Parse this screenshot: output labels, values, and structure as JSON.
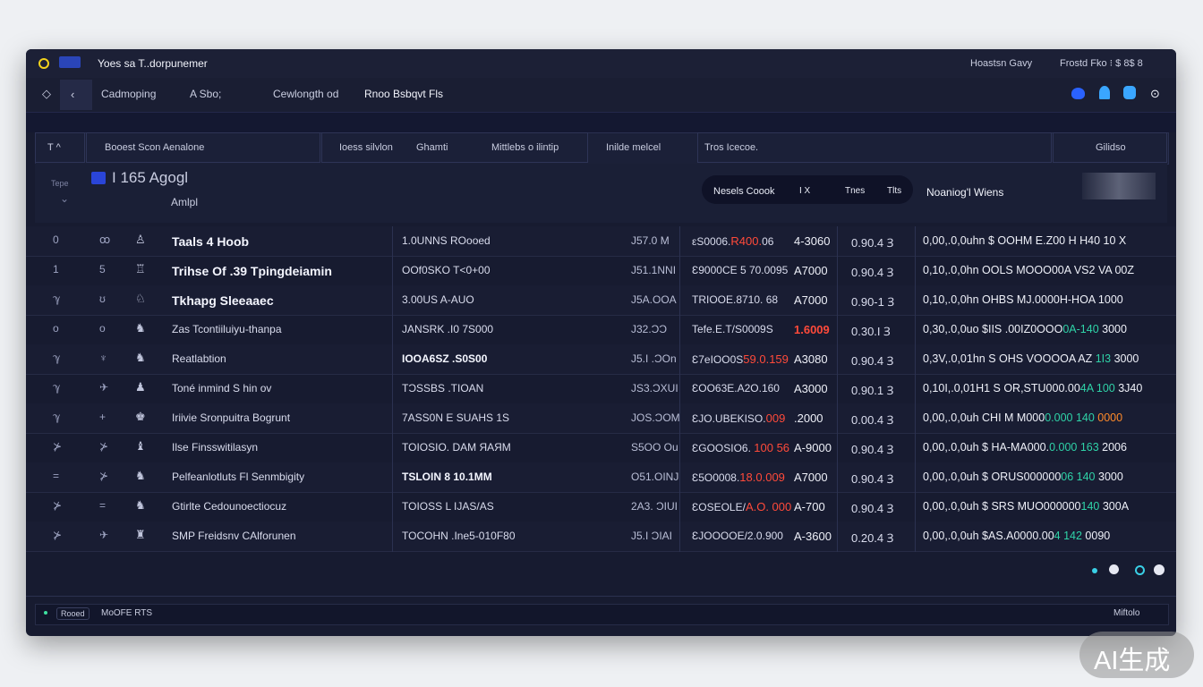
{
  "title_bar": {
    "title": "Yoes sa T..dorpunemer",
    "right_1": "Hoastsn Gavy",
    "right_2": "Frostd Fko ⁝ $ 8$ 8"
  },
  "toolbar": {
    "items": [
      "Cadmoping",
      "A Sbo;",
      "Cewlongth od",
      "Rnoo  Bsbqvt Fls"
    ]
  },
  "tabs": [
    "T ^",
    "Booest Scon Aenalone",
    "Ioess silvlon",
    "Ghamti",
    "Mittlebs o ilintip",
    "Inilde melcel",
    "Tros Icecoe.",
    "Gilidso"
  ],
  "subheader": {
    "title": "I 165 Agogl",
    "subtitle": "Amlpl",
    "left_label": "Tepe",
    "pill": [
      "Nesels Coook",
      "I X",
      "Tnes",
      "Tlts"
    ],
    "right_label": "Noaniog'l Wiens"
  },
  "rows": [
    {
      "icon": "0",
      "num": "ꝏ",
      "glyph": "♙",
      "name": "Taals 4 Hoob",
      "code": "1.0UNNS ROooed",
      "size": "J57.0 M",
      "price": "εS0006.",
      "price_hl": "R400.",
      "price_tail": "06",
      "price_hl_color": "#ff4a3a",
      "qty": "4-3060",
      "pct": "0.90.4 Ɜ",
      "total": "0,00,.0,0uhn $ OOHM E.Z00 H H40 10 X"
    },
    {
      "icon": "1",
      "num": "5",
      "glyph": "♖",
      "name": "Trihse Of .39 Tpingdeiamin",
      "code": "OOf0SKO T<0+00",
      "size": "J51.1NNI",
      "price": "Ɛ9000CE 5 70.00",
      "price_tail": "95",
      "qty": "A7000",
      "pct": "0.90.4 Ɜ",
      "total": "0,10,.0,0hn OOLS MOOO00A VS2 VA 00Z"
    },
    {
      "icon": "ℽ",
      "num": "ʊ",
      "glyph": "♘",
      "name": "Tkhapg Sleeaaec",
      "code": "3.00US A-AUO",
      "size": "J5A.OOA",
      "price": "TRIOOE.8710. 6",
      "price_tail": "8",
      "qty": "A7000",
      "pct": "0.90-1 Ɜ",
      "total": "0,10,.0,0hn OHBS MJ.0000H-HOA 1000"
    },
    {
      "icon": "o",
      "num": "o",
      "glyph": "♞",
      "name": "Zas Tcontiiluiyu-thanpa",
      "code": "JANSRK .I0 7S000",
      "size": "J32.ƆƆ",
      "price": "Tefe.E.T/S0009S",
      "qty": "1.6009",
      "qty_color": "#ff4a3a",
      "pct": "0.30.I Ɜ",
      "total": "0,30,.0,0uo $IIS .00IZ0OOO",
      "total_hl": "0A-140 ",
      "total_hl_color": "#2fd3a8",
      "total_tail": "3000"
    },
    {
      "icon": "ℽ",
      "num": "♆",
      "glyph": "♞",
      "name": "Reatlabtion",
      "code": "IOOA6SZ .S0S00",
      "size": "J5.I .ƆOn",
      "price": "Ɛ7eIOO0S",
      "price_hl": "59.0.159",
      "price_hl_color": "#ff4a3a",
      "qty": "A3080",
      "pct": "0.90.4 Ɜ",
      "total": "0,3V,.0,01hn S OHS VOOOOA AZ",
      "total_hl": " 1I3 ",
      "total_hl_color": "#2fd3a8",
      "total_tail": "3000"
    },
    {
      "icon": "ℽ",
      "num": "✈",
      "glyph": "♟",
      "name": "Toné inmind S hin ov",
      "code": "TƆSSBS .TIOAN",
      "size": "JS3.ƆXUI",
      "price": "ƐOO63E.",
      "price_tail": "A2O.160",
      "qty": "A3000",
      "pct": "0.90.1 Ɜ",
      "total": "0,10I,.0,01H1 S OR,STU000.00",
      "total_hl": "4A 100 ",
      "total_hl_color": "#2fd3a8",
      "total_tail": "3J40"
    },
    {
      "icon": "ℽ",
      "num": "+",
      "glyph": "♚",
      "name": "Iriivie Sronpuitra Bogrunt",
      "code": "7ASS0N E SUAHS 1S",
      "size": "JOS.ƆOM",
      "price": "ƐJO.UBEKISO.",
      "price_hl": "009",
      "price_hl_color": "#ff4a3a",
      "qty": ".2000",
      "pct": "0.00.4 Ɜ",
      "total": "0,00,.0,0uh CHI  M M000",
      "total_hl": "0.000 140 ",
      "total_hl_color": "#2fd3a8",
      "total_tail": "0000",
      "total_tail_color": "#ff8a2a"
    },
    {
      "icon": "⊁",
      "num": "⊁",
      "glyph": "♝",
      "name": "Ilse Finsswitilasyn",
      "code": "TOIOSIO. DAM ЯAЯM",
      "size": "S5OO Ou",
      "price": "ƐGOOSIO6. ",
      "price_hl": "100 56",
      "price_hl_color": "#ff4a3a",
      "qty": "A-9000",
      "pct": "0.90.4 Ɜ",
      "total": "0,00,.0,0uh $ HA-MA000.",
      "total_hl": "0.000 163 ",
      "total_hl_color": "#2fd3a8",
      "total_tail": "2006"
    },
    {
      "icon": "=",
      "num": "⊁",
      "glyph": "♞",
      "name": "Pelfeanlotluts Fl Senmbigity",
      "code": "TSLOIN 8 10.1MM",
      "size": "O51.OINJ",
      "price": "Ɛ5O0008.",
      "price_hl": "18.0.009",
      "price_hl_color": "#ff4a3a",
      "qty": "A7000",
      "pct": "0.90.4 Ɜ",
      "total": "0,00,.0,0uh $ ORUS000000",
      "total_hl": "06 140 ",
      "total_hl_color": "#2fd3a8",
      "total_tail": "3000"
    },
    {
      "icon": "⊁",
      "num": "=",
      "glyph": "♞",
      "name": "Gtirlte Cedounoectiocuz",
      "code": "TOIOSS L IJAS/AS",
      "size": "2A3. ƆIUI",
      "price": "ƐOSEOLE/",
      "price_hl": "A.O. 000",
      "price_hl_color": "#ff4a3a",
      "qty": "A-700",
      "pct": "0.90.4 Ɜ",
      "total": "0,00,.0,0uh $ SRS MUO000000",
      "total_hl": "140 ",
      "total_hl_color": "#2fd3a8",
      "total_tail": "300A"
    },
    {
      "icon": "⊁",
      "num": "✈",
      "glyph": "♜",
      "name": "SMP Freidsnv CAlforunen",
      "code": "TOCOHN .Ine5-010F80",
      "size": "J5.I ƆIAI",
      "price": "ƐJOOOOE/2.0.900",
      "qty": "A-3600",
      "pct": "0.20.4 Ɜ",
      "total": "0,00,.0,0uh $AS.A0000.00",
      "total_hl": "4 142 ",
      "total_hl_color": "#2fd3a8",
      "total_tail": "0090"
    }
  ],
  "footer": {
    "left_1": "Rooed",
    "left_2": "MoOFE RTS",
    "right": "Miftolo"
  },
  "watermark": "AI生成"
}
